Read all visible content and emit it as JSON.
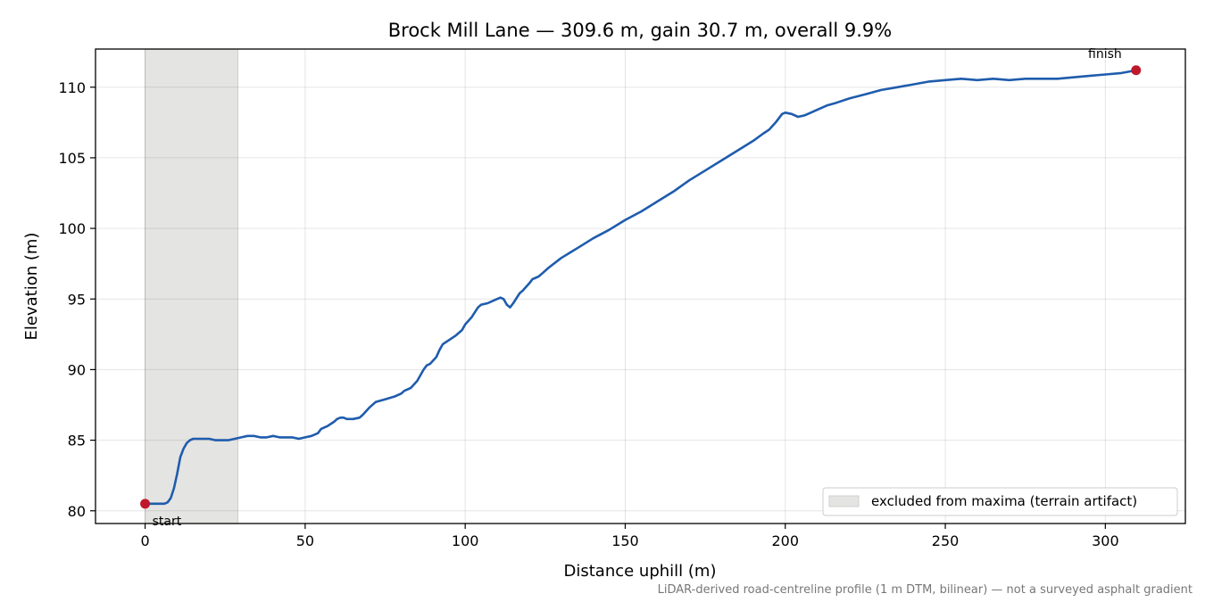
{
  "chart_data": {
    "type": "line",
    "title": "Brock Mill Lane — 309.6 m, gain 30.7 m, overall 9.9%",
    "xlabel": "Distance uphill (m)",
    "ylabel": "Elevation (m)",
    "xlim": [
      -15.5,
      325
    ],
    "ylim": [
      79.1,
      112.7
    ],
    "xticks": [
      0,
      50,
      100,
      150,
      200,
      250,
      300
    ],
    "yticks": [
      80,
      85,
      90,
      95,
      100,
      105,
      110
    ],
    "grid": true,
    "legend_position": "lower-right",
    "line_color": "#1f5cad",
    "marker_color": "#c0182b",
    "band_color": "#e4e4e2",
    "excluded_band": {
      "x_start": 0,
      "x_end": 29,
      "label": "excluded from maxima (terrain artifact)"
    },
    "series": [
      {
        "values": [
          [
            0,
            80.5
          ],
          [
            2,
            80.5
          ],
          [
            4,
            80.5
          ],
          [
            6,
            80.5
          ],
          [
            7,
            80.6
          ],
          [
            8,
            80.9
          ],
          [
            9,
            81.6
          ],
          [
            10,
            82.6
          ],
          [
            11,
            83.8
          ],
          [
            12,
            84.4
          ],
          [
            13,
            84.8
          ],
          [
            14,
            85.0
          ],
          [
            15,
            85.1
          ],
          [
            17,
            85.1
          ],
          [
            19,
            85.1
          ],
          [
            20,
            85.1
          ],
          [
            22,
            85.0
          ],
          [
            24,
            85.0
          ],
          [
            26,
            85.0
          ],
          [
            28,
            85.1
          ],
          [
            30,
            85.2
          ],
          [
            32,
            85.3
          ],
          [
            34,
            85.3
          ],
          [
            36,
            85.2
          ],
          [
            38,
            85.2
          ],
          [
            40,
            85.3
          ],
          [
            42,
            85.2
          ],
          [
            44,
            85.2
          ],
          [
            46,
            85.2
          ],
          [
            48,
            85.1
          ],
          [
            50,
            85.2
          ],
          [
            52,
            85.3
          ],
          [
            54,
            85.5
          ],
          [
            55,
            85.8
          ],
          [
            57,
            86.0
          ],
          [
            59,
            86.3
          ],
          [
            60,
            86.5
          ],
          [
            61,
            86.6
          ],
          [
            62,
            86.6
          ],
          [
            63,
            86.5
          ],
          [
            65,
            86.5
          ],
          [
            67,
            86.6
          ],
          [
            68,
            86.8
          ],
          [
            70,
            87.3
          ],
          [
            72,
            87.7
          ],
          [
            75,
            87.9
          ],
          [
            78,
            88.1
          ],
          [
            80,
            88.3
          ],
          [
            81,
            88.5
          ],
          [
            83,
            88.7
          ],
          [
            85,
            89.2
          ],
          [
            87,
            90.0
          ],
          [
            88,
            90.3
          ],
          [
            89,
            90.4
          ],
          [
            91,
            90.9
          ],
          [
            92,
            91.4
          ],
          [
            93,
            91.8
          ],
          [
            95,
            92.1
          ],
          [
            97,
            92.4
          ],
          [
            99,
            92.8
          ],
          [
            100,
            93.2
          ],
          [
            102,
            93.7
          ],
          [
            104,
            94.4
          ],
          [
            105,
            94.6
          ],
          [
            107,
            94.7
          ],
          [
            109,
            94.9
          ],
          [
            111,
            95.1
          ],
          [
            112,
            95.0
          ],
          [
            113,
            94.6
          ],
          [
            114,
            94.4
          ],
          [
            115,
            94.7
          ],
          [
            117,
            95.4
          ],
          [
            118,
            95.6
          ],
          [
            120,
            96.1
          ],
          [
            121,
            96.4
          ],
          [
            122,
            96.5
          ],
          [
            123,
            96.6
          ],
          [
            124,
            96.8
          ],
          [
            126,
            97.2
          ],
          [
            130,
            97.9
          ],
          [
            135,
            98.6
          ],
          [
            140,
            99.3
          ],
          [
            145,
            99.9
          ],
          [
            150,
            100.6
          ],
          [
            155,
            101.2
          ],
          [
            160,
            101.9
          ],
          [
            165,
            102.6
          ],
          [
            170,
            103.4
          ],
          [
            175,
            104.1
          ],
          [
            180,
            104.8
          ],
          [
            185,
            105.5
          ],
          [
            190,
            106.2
          ],
          [
            193,
            106.7
          ],
          [
            195,
            107.0
          ],
          [
            197,
            107.5
          ],
          [
            199,
            108.1
          ],
          [
            200,
            108.2
          ],
          [
            202,
            108.1
          ],
          [
            204,
            107.9
          ],
          [
            206,
            108.0
          ],
          [
            208,
            108.2
          ],
          [
            210,
            108.4
          ],
          [
            213,
            108.7
          ],
          [
            216,
            108.9
          ],
          [
            220,
            109.2
          ],
          [
            225,
            109.5
          ],
          [
            230,
            109.8
          ],
          [
            235,
            110.0
          ],
          [
            240,
            110.2
          ],
          [
            245,
            110.4
          ],
          [
            250,
            110.5
          ],
          [
            255,
            110.6
          ],
          [
            260,
            110.5
          ],
          [
            265,
            110.6
          ],
          [
            270,
            110.5
          ],
          [
            275,
            110.6
          ],
          [
            280,
            110.6
          ],
          [
            285,
            110.6
          ],
          [
            290,
            110.7
          ],
          [
            295,
            110.8
          ],
          [
            300,
            110.9
          ],
          [
            305,
            111.0
          ],
          [
            309.6,
            111.2
          ]
        ]
      }
    ],
    "endpoints": [
      {
        "label": "start",
        "x": 0,
        "y": 80.5
      },
      {
        "label": "finish",
        "x": 309.6,
        "y": 111.2
      }
    ],
    "footnote": "LiDAR-derived road-centreline profile (1 m DTM, bilinear) — not a surveyed asphalt gradient"
  }
}
